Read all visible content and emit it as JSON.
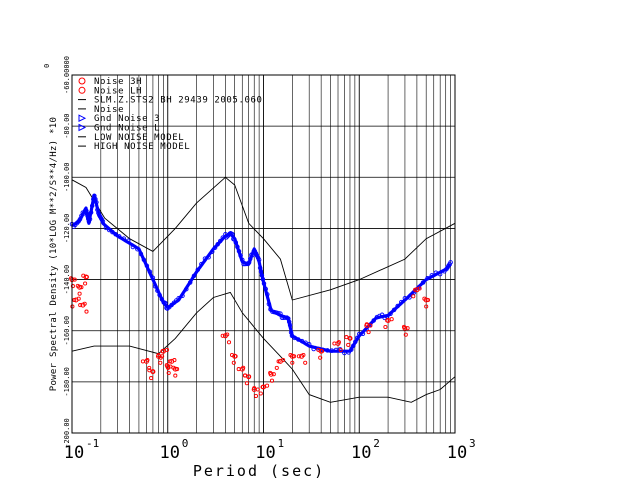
{
  "chart_data": {
    "type": "scatter",
    "xlabel": "Period (sec)",
    "ylabel": "Power Spectral Density (10*LOG M**2/S**4/Hz) *10",
    "ylabel_exponent": "0",
    "x_scale": "log",
    "xlim": [
      0.1,
      1000
    ],
    "ylim": [
      -200,
      -60
    ],
    "x_ticks": [
      {
        "base": "10",
        "exp": "-1"
      },
      {
        "base": "10",
        "exp": "0"
      },
      {
        "base": "10",
        "exp": "1"
      },
      {
        "base": "10",
        "exp": "2"
      },
      {
        "base": "10",
        "exp": "3"
      }
    ],
    "y_ticks": [
      {
        "value": -200,
        "label": "-200.00"
      },
      {
        "value": -180,
        "label": "-180.00"
      },
      {
        "value": -160,
        "label": "-160.00"
      },
      {
        "value": -140,
        "label": "-140.00"
      },
      {
        "value": -120,
        "label": "-120.00"
      },
      {
        "value": -100,
        "label": "-100.00"
      },
      {
        "value": -80,
        "label": "-80.00"
      },
      {
        "value": -60,
        "label": "-60.00000"
      }
    ],
    "grid": true,
    "legend_position": "top-left",
    "legend": [
      {
        "symbol": "circle",
        "color": "#ff0000",
        "label": "Noise 3H"
      },
      {
        "symbol": "circle",
        "color": "#ff0000",
        "label": "Noise LH"
      },
      {
        "symbol": "line",
        "color": "#000000",
        "label": "SLM.Z.STS2 BH 29439 2005.060"
      },
      {
        "symbol": "line",
        "color": "#000000",
        "label": "Noise"
      },
      {
        "symbol": "triangle",
        "color": "#0000ff",
        "label": "Gnd Noise 3"
      },
      {
        "symbol": "triangle",
        "color": "#0000ff",
        "label": "Gnd Noise L"
      },
      {
        "symbol": "line",
        "color": "#000000",
        "label": "LOW NOISE MODEL"
      },
      {
        "symbol": "line",
        "color": "#000000",
        "label": "HIGH NOISE MODEL"
      }
    ],
    "series": [
      {
        "name": "HIGH NOISE MODEL",
        "color": "#000000",
        "style": "line",
        "points": [
          [
            0.1,
            -101
          ],
          [
            0.14,
            -104
          ],
          [
            0.22,
            -116
          ],
          [
            0.4,
            -124
          ],
          [
            0.7,
            -129
          ],
          [
            1.2,
            -120
          ],
          [
            2,
            -110
          ],
          [
            4,
            -100
          ],
          [
            5,
            -103
          ],
          [
            7,
            -118
          ],
          [
            10,
            -124
          ],
          [
            15,
            -132
          ],
          [
            20,
            -148
          ],
          [
            50,
            -144
          ],
          [
            100,
            -140
          ],
          [
            300,
            -132
          ],
          [
            500,
            -124
          ],
          [
            1000,
            -118
          ]
        ]
      },
      {
        "name": "LOW NOISE MODEL",
        "color": "#000000",
        "style": "line",
        "points": [
          [
            0.1,
            -168
          ],
          [
            0.17,
            -166
          ],
          [
            0.4,
            -166
          ],
          [
            0.8,
            -169
          ],
          [
            1.2,
            -163
          ],
          [
            2,
            -153
          ],
          [
            3,
            -147
          ],
          [
            4.5,
            -145
          ],
          [
            6,
            -153
          ],
          [
            10,
            -163
          ],
          [
            15,
            -170
          ],
          [
            20,
            -175
          ],
          [
            30,
            -185
          ],
          [
            50,
            -188
          ],
          [
            100,
            -186
          ],
          [
            200,
            -186
          ],
          [
            350,
            -188
          ],
          [
            500,
            -185
          ],
          [
            700,
            -183
          ],
          [
            1000,
            -178
          ]
        ]
      },
      {
        "name": "Gnd Noise",
        "color": "#0000ff",
        "style": "dense",
        "points": [
          [
            0.1,
            -119
          ],
          [
            0.12,
            -117
          ],
          [
            0.14,
            -112
          ],
          [
            0.15,
            -118
          ],
          [
            0.17,
            -107
          ],
          [
            0.19,
            -114
          ],
          [
            0.21,
            -118
          ],
          [
            0.3,
            -123
          ],
          [
            0.5,
            -128
          ],
          [
            0.7,
            -140
          ],
          [
            0.9,
            -149
          ],
          [
            1.0,
            -151
          ],
          [
            1.3,
            -148
          ],
          [
            2,
            -137
          ],
          [
            3,
            -128
          ],
          [
            4,
            -123
          ],
          [
            4.5,
            -122
          ],
          [
            5,
            -124
          ],
          [
            6,
            -133
          ],
          [
            7,
            -134
          ],
          [
            8,
            -128
          ],
          [
            9,
            -133
          ],
          [
            10,
            -141
          ],
          [
            12,
            -152
          ],
          [
            15,
            -154
          ],
          [
            18,
            -155
          ],
          [
            20,
            -162
          ],
          [
            30,
            -166
          ],
          [
            50,
            -168
          ],
          [
            80,
            -168
          ],
          [
            100,
            -162
          ],
          [
            150,
            -155
          ],
          [
            200,
            -154
          ],
          [
            300,
            -148
          ],
          [
            500,
            -140
          ],
          [
            800,
            -136
          ],
          [
            900,
            -134
          ]
        ]
      },
      {
        "name": "Noise",
        "color": "#ff0000",
        "style": "scatter",
        "points": [
          [
            0.1,
            -140
          ],
          [
            0.11,
            -148
          ],
          [
            0.12,
            -143
          ],
          [
            0.13,
            -150
          ],
          [
            0.14,
            -139
          ],
          [
            0.6,
            -172
          ],
          [
            0.7,
            -176
          ],
          [
            0.8,
            -170
          ],
          [
            0.9,
            -168
          ],
          [
            1.0,
            -174
          ],
          [
            1.1,
            -172
          ],
          [
            1.2,
            -175
          ],
          [
            4,
            -162
          ],
          [
            5,
            -170
          ],
          [
            6,
            -175
          ],
          [
            7,
            -178
          ],
          [
            8,
            -183
          ],
          [
            10,
            -182
          ],
          [
            12,
            -177
          ],
          [
            15,
            -172
          ],
          [
            20,
            -170
          ],
          [
            25,
            -170
          ],
          [
            40,
            -168
          ],
          [
            60,
            -165
          ],
          [
            80,
            -163
          ],
          [
            120,
            -158
          ],
          [
            200,
            -156
          ],
          [
            300,
            -159
          ],
          [
            400,
            -144
          ],
          [
            500,
            -148
          ]
        ]
      }
    ]
  }
}
